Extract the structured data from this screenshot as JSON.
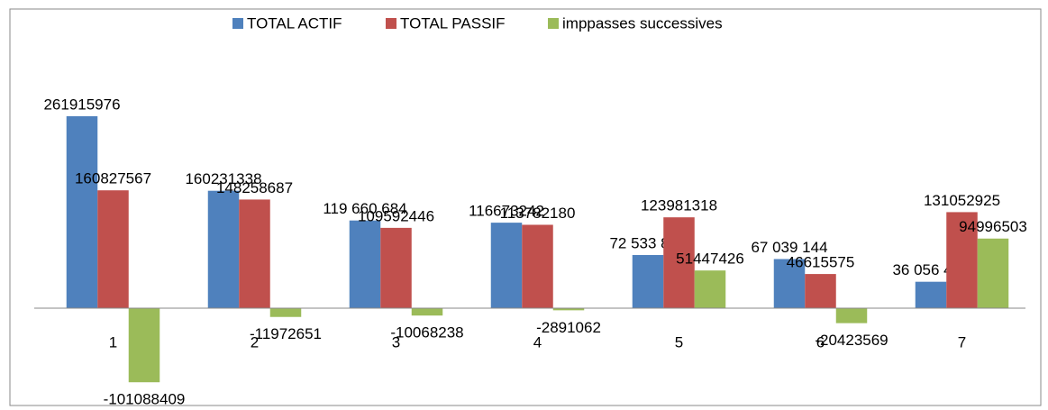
{
  "chart_data": {
    "type": "bar",
    "categories": [
      "1",
      "2",
      "3",
      "4",
      "5",
      "6",
      "7"
    ],
    "series": [
      {
        "name": "TOTAL ACTIF",
        "color": "#4f81bd",
        "values": [
          261915976,
          160231338,
          119660684,
          116673242,
          72533892,
          67039144,
          36056422
        ],
        "value_labels": [
          "261915976",
          "160231338",
          "119 660 684",
          "116673242",
          "72 533 892",
          "67 039 144",
          "36 056 422"
        ]
      },
      {
        "name": "TOTAL PASSIF",
        "color": "#c0504d",
        "values": [
          160827567,
          148258687,
          109592446,
          113782180,
          123981318,
          46615575,
          131052925
        ]
      },
      {
        "name": "imppasses successives",
        "color": "#9bbb59",
        "values": [
          -101088409,
          -11972651,
          -10068238,
          -2891062,
          51447426,
          -20423569,
          94996503
        ]
      }
    ],
    "legend": "top"
  }
}
